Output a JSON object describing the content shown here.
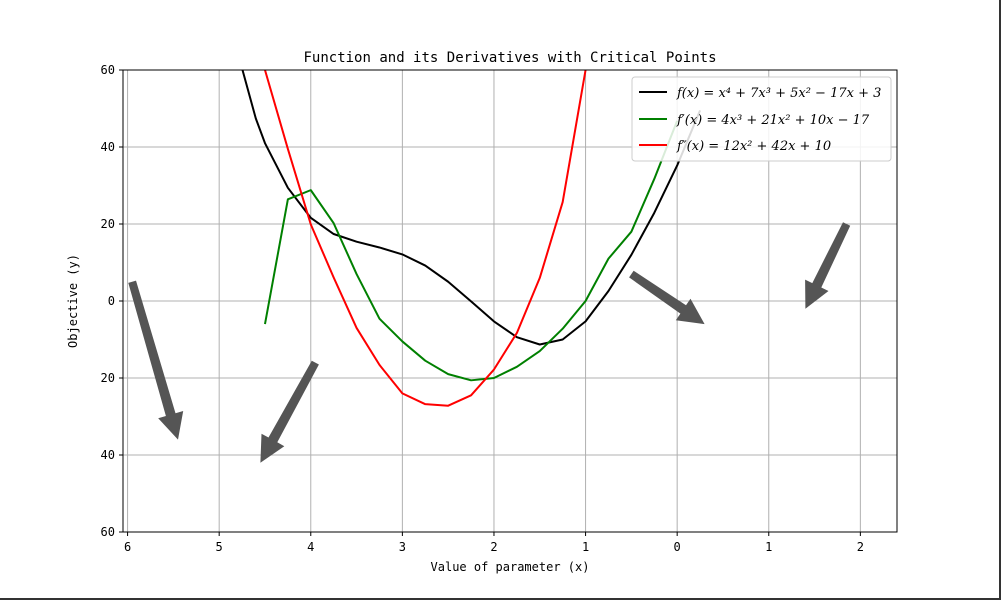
{
  "chart_data": {
    "type": "line",
    "title": "Function and its Derivatives with Critical Points",
    "xlabel": "Value of parameter (x)",
    "ylabel": "Objective (y)",
    "x_ticks": [
      -4.5,
      -3.5,
      -2.5,
      -1.5,
      -0.5,
      0.5,
      1.5,
      2.5,
      3.5
    ],
    "x_tick_labels": [
      "6",
      "5",
      "4",
      "3",
      "2",
      "1",
      "0",
      "1",
      "2"
    ],
    "y_ticks": [
      -60,
      -40,
      -20,
      0,
      20,
      40,
      60
    ],
    "y_tick_labels": [
      "60",
      "40",
      "20",
      "0",
      "20",
      "40",
      "60"
    ],
    "xlim": [
      -4.55,
      3.9
    ],
    "ylim": [
      -60,
      60
    ],
    "grid": true,
    "legend_position": "top-right",
    "colors": {
      "f": "#000000",
      "f_prime": "#008000",
      "f_double_prime": "#ff0000",
      "arrow": "#555555",
      "grid": "#b0b0b0"
    },
    "series": [
      {
        "name": "f(x) = x⁴ + 7x³ + 5x² − 17x + 3",
        "coefficients": [
          1,
          7,
          5,
          -17,
          3
        ],
        "x": [
          -3.25,
          -3.1,
          -3.0,
          -2.75,
          -2.5,
          -2.25,
          -2.0,
          -1.75,
          -1.5,
          -1.25,
          -1.0,
          -0.75,
          -0.5,
          -0.25,
          0.0,
          0.25,
          0.5,
          0.75,
          1.0,
          1.25,
          1.5,
          1.75
        ],
        "values": [
          60.4,
          47.4,
          41.0,
          29.4,
          21.6,
          17.4,
          15.4,
          13.9,
          12.1,
          9.2,
          5.0,
          -0.1,
          -5.3,
          -9.4,
          -11.3,
          -10.0,
          -5.3,
          2.6,
          12.0,
          22.9,
          35.2,
          49.5
        ]
      },
      {
        "name": "f′(x) = 4x³ + 21x² + 10x − 17",
        "coefficients": [
          4,
          21,
          10,
          -17
        ],
        "x": [
          -3.0,
          -2.75,
          -2.5,
          -2.25,
          -2.0,
          -1.75,
          -1.5,
          -1.25,
          -1.0,
          -0.75,
          -0.5,
          -0.25,
          0.0,
          0.25,
          0.5,
          0.75,
          1.0,
          1.25,
          1.5
        ],
        "values": [
          -6.0,
          26.4,
          28.8,
          20.2,
          7.0,
          -4.6,
          -10.5,
          -15.5,
          -19.0,
          -20.6,
          -20.0,
          -17.1,
          -13.0,
          -7.2,
          0.0,
          11.0,
          18.0,
          31.7,
          46.8
        ]
      },
      {
        "name": "f″(x) = 12x² + 42x + 10",
        "coefficients": [
          12,
          42,
          10
        ],
        "x": [
          -3.0,
          -2.75,
          -2.5,
          -2.25,
          -2.0,
          -1.75,
          -1.5,
          -1.25,
          -1.0,
          -0.75,
          -0.5,
          -0.25,
          0.0,
          0.25,
          0.5
        ],
        "values": [
          60.0,
          39.5,
          19.9,
          6.1,
          -7.0,
          -16.6,
          -24.0,
          -26.8,
          -27.2,
          -24.5,
          -17.8,
          -8.3,
          6.0,
          25.7,
          60.0
        ]
      }
    ],
    "legend": [
      {
        "key": "f",
        "label": "f(x) = x⁴ + 7x³ + 5x² − 17x + 3"
      },
      {
        "key": "f_prime",
        "label": "f′(x) = 4x³ + 21x² + 10x − 17"
      },
      {
        "key": "f_double_prime",
        "label": "f″(x) = 12x² + 42x + 10"
      }
    ],
    "annotations": [
      {
        "type": "arrow",
        "x_from": -4.45,
        "y_from": 5,
        "x_to": -3.95,
        "y_to": -36,
        "color": "#555555"
      },
      {
        "type": "arrow",
        "x_from": -2.45,
        "y_from": -16,
        "x_to": -3.05,
        "y_to": -42,
        "color": "#555555"
      },
      {
        "type": "arrow",
        "x_from": 1.0,
        "y_from": 7,
        "x_to": 1.8,
        "y_to": -6,
        "color": "#555555"
      },
      {
        "type": "arrow",
        "x_from": 3.35,
        "y_from": 20,
        "x_to": 2.9,
        "y_to": -2,
        "color": "#555555"
      }
    ]
  }
}
